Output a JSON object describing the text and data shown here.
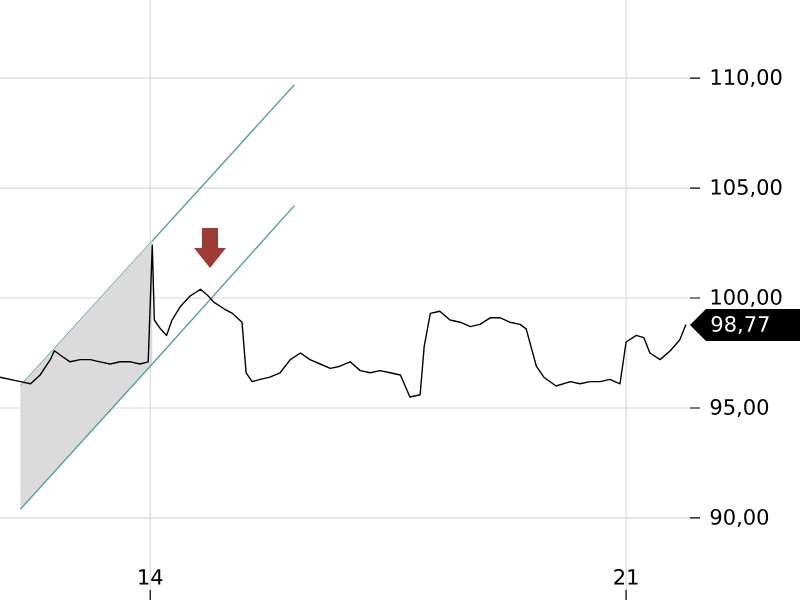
{
  "chart_data": {
    "type": "line",
    "xlim": [
      11.79,
      21.94
    ],
    "ylim": [
      86.27,
      113.55
    ],
    "xticks": [
      14,
      21
    ],
    "yticks": [
      {
        "value": 90,
        "label": "90,00"
      },
      {
        "value": 95,
        "label": "95,00"
      },
      {
        "value": 100,
        "label": "100,00"
      },
      {
        "value": 105,
        "label": "105,00"
      },
      {
        "value": 110,
        "label": "110,00"
      }
    ],
    "grid": true,
    "series": [
      {
        "type": "line",
        "color": "#5a9ea6",
        "x": [
          12.09,
          16.12
        ],
        "values": [
          96.0,
          109.7
        ]
      },
      {
        "type": "line",
        "color": "#5a9ea6",
        "x": [
          12.09,
          14.03,
          16.12
        ],
        "values": [
          90.4,
          97.0,
          104.2
        ],
        "lower": [
          90.4,
          97.0,
          null
        ],
        "upper": [
          96.0,
          102.6,
          null
        ]
      },
      {
        "color": "#000000",
        "x": [
          11.79,
          12.09,
          12.24,
          12.38,
          12.53,
          12.59,
          12.68,
          12.82,
          12.97,
          13.12,
          13.26,
          13.41,
          13.56,
          13.71,
          13.85,
          13.97,
          14.03,
          14.06,
          14.15,
          14.24,
          14.32,
          14.44,
          14.59,
          14.74,
          14.85,
          14.94,
          15.09,
          15.21,
          15.35,
          15.41,
          15.5,
          15.62,
          15.76,
          15.91,
          16.06,
          16.21,
          16.35,
          16.5,
          16.65,
          16.79,
          16.94,
          17.09,
          17.24,
          17.38,
          17.53,
          17.68,
          17.82,
          17.97,
          18.03,
          18.12,
          18.26,
          18.41,
          18.56,
          18.71,
          18.85,
          19.0,
          19.15,
          19.29,
          19.44,
          19.53,
          19.68,
          19.79,
          19.97,
          20.18,
          20.32,
          20.47,
          20.62,
          20.76,
          20.91,
          21.0,
          21.15,
          21.26,
          21.35,
          21.5,
          21.65,
          21.79,
          21.88
        ],
        "values": [
          96.4,
          96.2,
          96.1,
          96.5,
          97.2,
          97.6,
          97.4,
          97.1,
          97.2,
          97.2,
          97.1,
          97.0,
          97.1,
          97.1,
          97.0,
          97.1,
          102.4,
          99.0,
          98.6,
          98.3,
          99.0,
          99.6,
          100.1,
          100.4,
          100.1,
          99.8,
          99.5,
          99.3,
          98.9,
          96.6,
          96.2,
          96.3,
          96.4,
          96.6,
          97.2,
          97.5,
          97.2,
          97.0,
          96.8,
          96.9,
          97.1,
          96.7,
          96.6,
          96.7,
          96.6,
          96.5,
          95.5,
          95.6,
          97.8,
          99.3,
          99.4,
          99.0,
          98.9,
          98.7,
          98.8,
          99.1,
          99.1,
          98.9,
          98.8,
          98.6,
          96.9,
          96.4,
          96.0,
          96.2,
          96.1,
          96.2,
          96.2,
          96.3,
          96.1,
          98.0,
          98.3,
          98.2,
          97.5,
          97.2,
          97.6,
          98.1,
          98.8
        ]
      }
    ],
    "annotations": [
      {
        "text": "98,77",
        "x": 21.88,
        "y": 98.77
      }
    ]
  }
}
